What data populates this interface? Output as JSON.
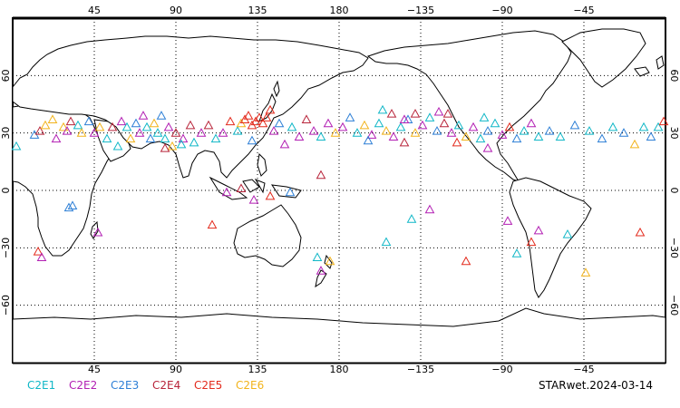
{
  "map": {
    "projection": "equirectangular",
    "lon_range": [
      0,
      360
    ],
    "lat_range": [
      -90,
      90
    ],
    "grid": "dotted",
    "grid_lons": [
      45,
      90,
      135,
      180,
      225,
      270,
      315
    ],
    "grid_lats": [
      -60,
      -30,
      0,
      30,
      60
    ],
    "lon_tick_labels": [
      "45",
      "90",
      "135",
      "180",
      "−135",
      "−90",
      "−45"
    ],
    "lat_tick_labels": [
      "−60",
      "−30",
      "0",
      "30",
      "60"
    ],
    "land_color": "#ffffff",
    "coast_color": "#000000"
  },
  "legend": {
    "items": [
      {
        "label": "C2E1",
        "color": "#11b7c7"
      },
      {
        "label": "C2E2",
        "color": "#b21fb3"
      },
      {
        "label": "C2E3",
        "color": "#2d7fd6"
      },
      {
        "label": "C2E4",
        "color": "#b8243a"
      },
      {
        "label": "C2E5",
        "color": "#e32a1c"
      },
      {
        "label": "C2E6",
        "color": "#f2b31b"
      }
    ]
  },
  "product_label": "STARwet.2024-03-14",
  "stations": [
    {
      "lon": 2,
      "lat": 23,
      "s": 0
    },
    {
      "lon": 12,
      "lat": 29,
      "s": 2
    },
    {
      "lon": 15,
      "lat": 31,
      "s": 3
    },
    {
      "lon": 18,
      "lat": 34,
      "s": 5
    },
    {
      "lon": 22,
      "lat": 37,
      "s": 5
    },
    {
      "lon": 24,
      "lat": 27,
      "s": 1
    },
    {
      "lon": 28,
      "lat": 33,
      "s": 5
    },
    {
      "lon": 30,
      "lat": 31,
      "s": 1
    },
    {
      "lon": 32,
      "lat": 36,
      "s": 3
    },
    {
      "lon": 36,
      "lat": 34,
      "s": 0
    },
    {
      "lon": 38,
      "lat": 30,
      "s": 5
    },
    {
      "lon": 42,
      "lat": 36,
      "s": 2
    },
    {
      "lon": 45,
      "lat": 30,
      "s": 1
    },
    {
      "lon": 48,
      "lat": 33,
      "s": 5
    },
    {
      "lon": 52,
      "lat": 27,
      "s": 0
    },
    {
      "lon": 55,
      "lat": 33,
      "s": 3
    },
    {
      "lon": 58,
      "lat": 23,
      "s": 0
    },
    {
      "lon": 60,
      "lat": 36,
      "s": 1
    },
    {
      "lon": 63,
      "lat": 33,
      "s": 0
    },
    {
      "lon": 65,
      "lat": 27,
      "s": 5
    },
    {
      "lon": 68,
      "lat": 35,
      "s": 2
    },
    {
      "lon": 70,
      "lat": 30,
      "s": 1
    },
    {
      "lon": 72,
      "lat": 39,
      "s": 1
    },
    {
      "lon": 74,
      "lat": 33,
      "s": 0
    },
    {
      "lon": 76,
      "lat": 27,
      "s": 2
    },
    {
      "lon": 78,
      "lat": 35,
      "s": 5
    },
    {
      "lon": 80,
      "lat": 30,
      "s": 0
    },
    {
      "lon": 82,
      "lat": 39,
      "s": 2
    },
    {
      "lon": 84,
      "lat": 27,
      "s": 0
    },
    {
      "lon": 86,
      "lat": 33,
      "s": 1
    },
    {
      "lon": 88,
      "lat": 23,
      "s": 5
    },
    {
      "lon": 90,
      "lat": 30,
      "s": 3
    },
    {
      "lon": 94,
      "lat": 27,
      "s": 1
    },
    {
      "lon": 98,
      "lat": 34,
      "s": 3
    },
    {
      "lon": 100,
      "lat": 25,
      "s": 0
    },
    {
      "lon": 104,
      "lat": 30,
      "s": 1
    },
    {
      "lon": 108,
      "lat": 34,
      "s": 3
    },
    {
      "lon": 112,
      "lat": 27,
      "s": 0
    },
    {
      "lon": 116,
      "lat": 30,
      "s": 1
    },
    {
      "lon": 120,
      "lat": 36,
      "s": 4
    },
    {
      "lon": 124,
      "lat": 31,
      "s": 0
    },
    {
      "lon": 126,
      "lat": 35,
      "s": 5
    },
    {
      "lon": 128,
      "lat": 37,
      "s": 4
    },
    {
      "lon": 130,
      "lat": 39,
      "s": 4
    },
    {
      "lon": 132,
      "lat": 34,
      "s": 4
    },
    {
      "lon": 134,
      "lat": 36,
      "s": 4
    },
    {
      "lon": 136,
      "lat": 38,
      "s": 4
    },
    {
      "lon": 138,
      "lat": 35,
      "s": 4
    },
    {
      "lon": 140,
      "lat": 38,
      "s": 4
    },
    {
      "lon": 142,
      "lat": 42,
      "s": 4
    },
    {
      "lon": 144,
      "lat": 31,
      "s": 1
    },
    {
      "lon": 147,
      "lat": 35,
      "s": 2
    },
    {
      "lon": 150,
      "lat": 24,
      "s": 1
    },
    {
      "lon": 154,
      "lat": 33,
      "s": 0
    },
    {
      "lon": 158,
      "lat": 28,
      "s": 1
    },
    {
      "lon": 162,
      "lat": 37,
      "s": 3
    },
    {
      "lon": 166,
      "lat": 31,
      "s": 1
    },
    {
      "lon": 170,
      "lat": 28,
      "s": 0
    },
    {
      "lon": 174,
      "lat": 35,
      "s": 1
    },
    {
      "lon": 178,
      "lat": 30,
      "s": 5
    },
    {
      "lon": 182,
      "lat": 33,
      "s": 1
    },
    {
      "lon": 186,
      "lat": 38,
      "s": 2
    },
    {
      "lon": 190,
      "lat": 30,
      "s": 0
    },
    {
      "lon": 194,
      "lat": 34,
      "s": 5
    },
    {
      "lon": 198,
      "lat": 29,
      "s": 1
    },
    {
      "lon": 202,
      "lat": 35,
      "s": 0
    },
    {
      "lon": 206,
      "lat": 31,
      "s": 5
    },
    {
      "lon": 210,
      "lat": 28,
      "s": 1
    },
    {
      "lon": 214,
      "lat": 33,
      "s": 0
    },
    {
      "lon": 218,
      "lat": 37,
      "s": 2
    },
    {
      "lon": 222,
      "lat": 30,
      "s": 5
    },
    {
      "lon": 226,
      "lat": 34,
      "s": 1
    },
    {
      "lon": 230,
      "lat": 38,
      "s": 0
    },
    {
      "lon": 234,
      "lat": 31,
      "s": 2
    },
    {
      "lon": 238,
      "lat": 35,
      "s": 3
    },
    {
      "lon": 242,
      "lat": 30,
      "s": 1
    },
    {
      "lon": 246,
      "lat": 34,
      "s": 0
    },
    {
      "lon": 250,
      "lat": 28,
      "s": 5
    },
    {
      "lon": 254,
      "lat": 33,
      "s": 1
    },
    {
      "lon": 258,
      "lat": 27,
      "s": 0
    },
    {
      "lon": 262,
      "lat": 31,
      "s": 2
    },
    {
      "lon": 266,
      "lat": 35,
      "s": 0
    },
    {
      "lon": 270,
      "lat": 29,
      "s": 1
    },
    {
      "lon": 274,
      "lat": 33,
      "s": 4
    },
    {
      "lon": 278,
      "lat": 27,
      "s": 2
    },
    {
      "lon": 282,
      "lat": 31,
      "s": 0
    },
    {
      "lon": 286,
      "lat": 35,
      "s": 1
    },
    {
      "lon": 290,
      "lat": 28,
      "s": 0
    },
    {
      "lon": 296,
      "lat": 31,
      "s": 2
    },
    {
      "lon": 302,
      "lat": 28,
      "s": 0
    },
    {
      "lon": 310,
      "lat": 34,
      "s": 2
    },
    {
      "lon": 318,
      "lat": 31,
      "s": 0
    },
    {
      "lon": 325,
      "lat": 27,
      "s": 2
    },
    {
      "lon": 331,
      "lat": 33,
      "s": 0
    },
    {
      "lon": 337,
      "lat": 30,
      "s": 2
    },
    {
      "lon": 343,
      "lat": 24,
      "s": 5
    },
    {
      "lon": 348,
      "lat": 33,
      "s": 0
    },
    {
      "lon": 352,
      "lat": 28,
      "s": 2
    },
    {
      "lon": 356,
      "lat": 33,
      "s": 0
    },
    {
      "lon": 359,
      "lat": 36,
      "s": 4
    },
    {
      "lon": 204,
      "lat": 42,
      "s": 0
    },
    {
      "lon": 209,
      "lat": 40,
      "s": 3
    },
    {
      "lon": 216,
      "lat": 37,
      "s": 1
    },
    {
      "lon": 222,
      "lat": 40,
      "s": 3
    },
    {
      "lon": 235,
      "lat": 41,
      "s": 1
    },
    {
      "lon": 240,
      "lat": 40,
      "s": 3
    },
    {
      "lon": 260,
      "lat": 38,
      "s": 0
    },
    {
      "lon": 84,
      "lat": 22,
      "s": 3
    },
    {
      "lon": 93,
      "lat": 24,
      "s": 0
    },
    {
      "lon": 132,
      "lat": 26,
      "s": 2
    },
    {
      "lon": 170,
      "lat": 8,
      "s": 3
    },
    {
      "lon": 196,
      "lat": 26,
      "s": 2
    },
    {
      "lon": 216,
      "lat": 25,
      "s": 3
    },
    {
      "lon": 245,
      "lat": 25,
      "s": 4
    },
    {
      "lon": 262,
      "lat": 22,
      "s": 1
    },
    {
      "lon": 133,
      "lat": -5,
      "s": 1
    },
    {
      "lon": 142,
      "lat": -3,
      "s": 4
    },
    {
      "lon": 153,
      "lat": -1,
      "s": 2
    },
    {
      "lon": 118,
      "lat": -1,
      "s": 1
    },
    {
      "lon": 126,
      "lat": 1,
      "s": 3
    },
    {
      "lon": 110,
      "lat": -18,
      "s": 4
    },
    {
      "lon": 168,
      "lat": -35,
      "s": 0
    },
    {
      "lon": 170,
      "lat": -42,
      "s": 1
    },
    {
      "lon": 175,
      "lat": -37,
      "s": 5
    },
    {
      "lon": 206,
      "lat": -27,
      "s": 0
    },
    {
      "lon": 220,
      "lat": -15,
      "s": 0
    },
    {
      "lon": 230,
      "lat": -10,
      "s": 1
    },
    {
      "lon": 250,
      "lat": -37,
      "s": 4
    },
    {
      "lon": 273,
      "lat": -16,
      "s": 1
    },
    {
      "lon": 278,
      "lat": -33,
      "s": 0
    },
    {
      "lon": 286,
      "lat": -27,
      "s": 4
    },
    {
      "lon": 290,
      "lat": -21,
      "s": 1
    },
    {
      "lon": 306,
      "lat": -23,
      "s": 0
    },
    {
      "lon": 316,
      "lat": -43,
      "s": 5
    },
    {
      "lon": 346,
      "lat": -22,
      "s": 4
    },
    {
      "lon": 14,
      "lat": -32,
      "s": 4
    },
    {
      "lon": 16,
      "lat": -35,
      "s": 1
    },
    {
      "lon": 31,
      "lat": -9,
      "s": 2
    },
    {
      "lon": 47,
      "lat": -22,
      "s": 1
    },
    {
      "lon": 33,
      "lat": -8,
      "s": 2
    }
  ]
}
